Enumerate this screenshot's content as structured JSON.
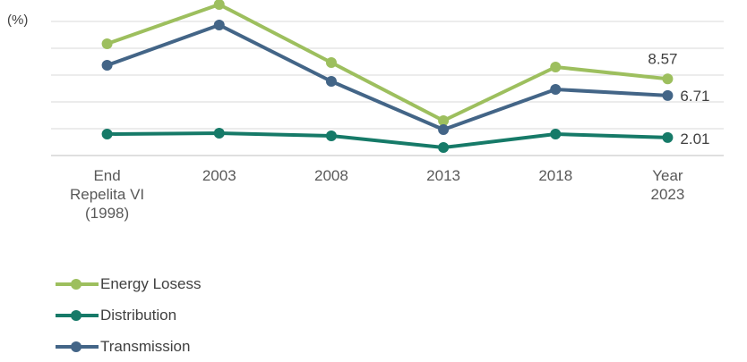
{
  "chart_data": {
    "type": "line",
    "ylabel": "(%)",
    "categories": [
      [
        "End",
        "Repelita VI",
        "(1998)"
      ],
      [
        "2003"
      ],
      [
        "2008"
      ],
      [
        "2013"
      ],
      [
        "2018"
      ],
      [
        "Year",
        "2023"
      ]
    ],
    "ylim": [
      0,
      15
    ],
    "ytick_count": 5,
    "grid": true,
    "series": [
      {
        "name": "Energy Losess",
        "color": "#9dbf5e",
        "values": [
          12.5,
          16.9,
          10.4,
          3.9,
          9.9,
          8.57
        ]
      },
      {
        "name": "Transmission",
        "color": "#436587",
        "values": [
          10.1,
          14.6,
          8.3,
          2.9,
          7.4,
          6.71
        ]
      },
      {
        "name": "Distribution",
        "color": "#167a68",
        "values": [
          2.4,
          2.5,
          2.2,
          0.9,
          2.4,
          2.01
        ]
      }
    ],
    "end_labels": {
      "Energy Losess": "8.57",
      "Transmission": "6.71",
      "Distribution": "2.01"
    },
    "legend_order": [
      "Energy Losess",
      "Distribution",
      "Transmission"
    ],
    "legend_position": "bottom-left"
  }
}
